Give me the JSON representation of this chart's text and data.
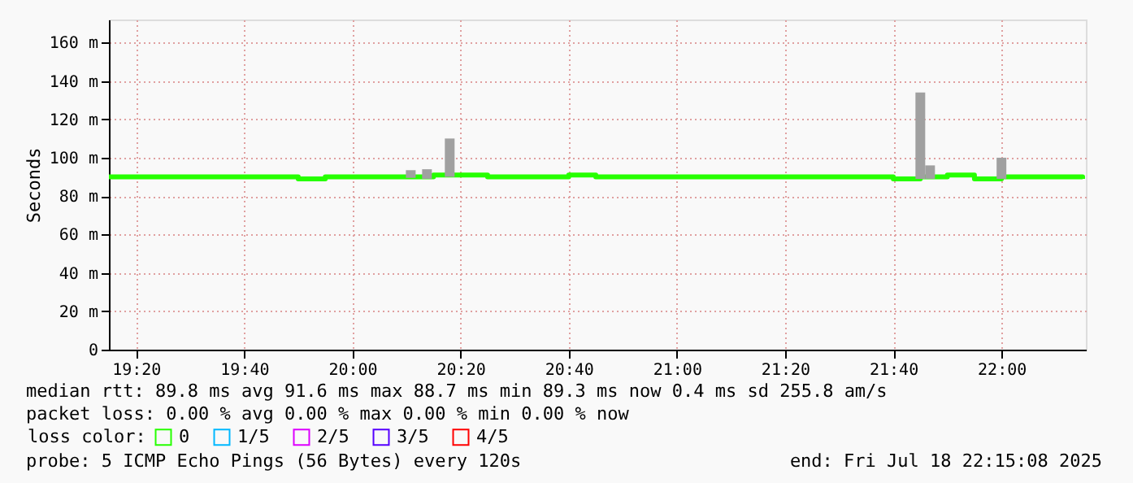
{
  "chart_data": {
    "type": "step",
    "ylabel": "Seconds",
    "x": [
      19.25,
      19.3333,
      19.4167,
      19.5,
      19.5833,
      19.6667,
      19.75,
      19.8333,
      19.9167,
      20,
      20.0833,
      20.1667,
      20.25,
      20.3333,
      20.4167,
      20.5,
      20.5833,
      20.6667,
      20.75,
      20.8333,
      20.9167,
      21,
      21.0833,
      21.1667,
      21.25,
      21.3333,
      21.4167,
      21.5,
      21.5833,
      21.6667,
      21.75,
      21.8333,
      21.9167,
      22,
      22.0833,
      22.1667,
      22.25
    ],
    "series": [
      {
        "name": "0",
        "color": "#26ff00",
        "values": [
          90,
          90,
          90,
          90,
          90,
          90,
          90,
          89,
          90,
          90,
          90,
          90,
          91,
          91,
          90,
          90,
          90,
          91,
          90,
          90,
          90,
          90,
          90,
          90,
          90,
          90,
          90,
          90,
          90,
          89,
          90,
          91,
          89,
          90,
          90,
          90,
          89
        ]
      },
      {
        "name": "1/5",
        "color": "#00b8ff",
        "values": [
          null,
          null,
          null,
          null,
          null,
          null,
          null,
          null,
          null,
          null,
          null,
          null,
          null,
          null,
          null,
          null,
          null,
          null,
          null,
          null,
          null,
          null,
          null,
          null,
          null,
          null,
          null,
          null,
          null,
          null,
          null,
          null,
          null,
          null,
          null,
          null,
          null
        ]
      },
      {
        "name": "2/5",
        "color": "#dd00ff",
        "values": [
          null,
          null,
          null,
          null,
          null,
          null,
          null,
          null,
          null,
          null,
          null,
          null,
          null,
          null,
          null,
          null,
          null,
          null,
          null,
          null,
          null,
          null,
          null,
          null,
          null,
          null,
          null,
          null,
          null,
          null,
          null,
          null,
          null,
          null,
          null,
          null,
          null
        ]
      },
      {
        "name": "3/5",
        "color": "#5500ff",
        "values": [
          null,
          null,
          null,
          null,
          null,
          null,
          null,
          null,
          null,
          null,
          null,
          null,
          null,
          null,
          null,
          null,
          null,
          null,
          null,
          null,
          null,
          null,
          null,
          null,
          null,
          null,
          null,
          null,
          null,
          null,
          null,
          null,
          null,
          null,
          null,
          null,
          null
        ]
      },
      {
        "name": "4/5",
        "color": "#ff0000",
        "values": [
          null,
          null,
          null,
          null,
          null,
          null,
          null,
          null,
          null,
          null,
          null,
          null,
          null,
          null,
          null,
          null,
          null,
          null,
          null,
          null,
          null,
          null,
          null,
          null,
          null,
          null,
          null,
          null,
          null,
          null,
          null,
          null,
          null,
          null,
          null,
          null,
          null
        ]
      },
      {
        "type": "bar",
        "color": "#a0a0a0",
        "x": [
          20.18,
          20.23,
          20.3,
          21.75,
          21.78,
          22.0
        ],
        "base": [
          89.5,
          89,
          90,
          89,
          89,
          89
        ],
        "values": [
          4,
          5,
          20,
          45,
          7,
          11
        ]
      }
    ],
    "xlim": [
      19.25,
      22.26
    ],
    "xticks": [
      {
        "value": 19.3333,
        "label": "19:20"
      },
      {
        "value": 19.6667,
        "label": "19:40"
      },
      {
        "value": 20,
        "label": "20:00"
      },
      {
        "value": 20.3333,
        "label": "20:20"
      },
      {
        "value": 20.6667,
        "label": "20:40"
      },
      {
        "value": 21,
        "label": "21:00"
      },
      {
        "value": 21.3333,
        "label": "21:20"
      },
      {
        "value": 21.6667,
        "label": "21:40"
      },
      {
        "value": 22,
        "label": "22:00"
      }
    ],
    "ylim": [
      0,
      172
    ],
    "yticks": [
      {
        "value": 0,
        "label": "0"
      },
      {
        "value": 20,
        "label": "20 m"
      },
      {
        "value": 40,
        "label": "40 m"
      },
      {
        "value": 60,
        "label": "60 m"
      },
      {
        "value": 80,
        "label": "80 m"
      },
      {
        "value": 100,
        "label": "100 m"
      },
      {
        "value": 120,
        "label": "120 m"
      },
      {
        "value": 140,
        "label": "140 m"
      },
      {
        "value": 160,
        "label": "160 m"
      }
    ],
    "grid": true,
    "legend": "bottom",
    "legend_title": "loss color:",
    "annotations": [
      "median rtt:  89.8 ms avg  91.6 ms max  88.7 ms min  89.3 ms now  0.4 ms sd  255.8    am/s",
      "packet loss: 0.00 % avg  0.00 % max  0.00 % min  0.00 % now",
      "probe:       5 ICMP Echo Pings (56 Bytes) every 120s",
      "end: Fri Jul 18 22:15:08 2025"
    ]
  }
}
